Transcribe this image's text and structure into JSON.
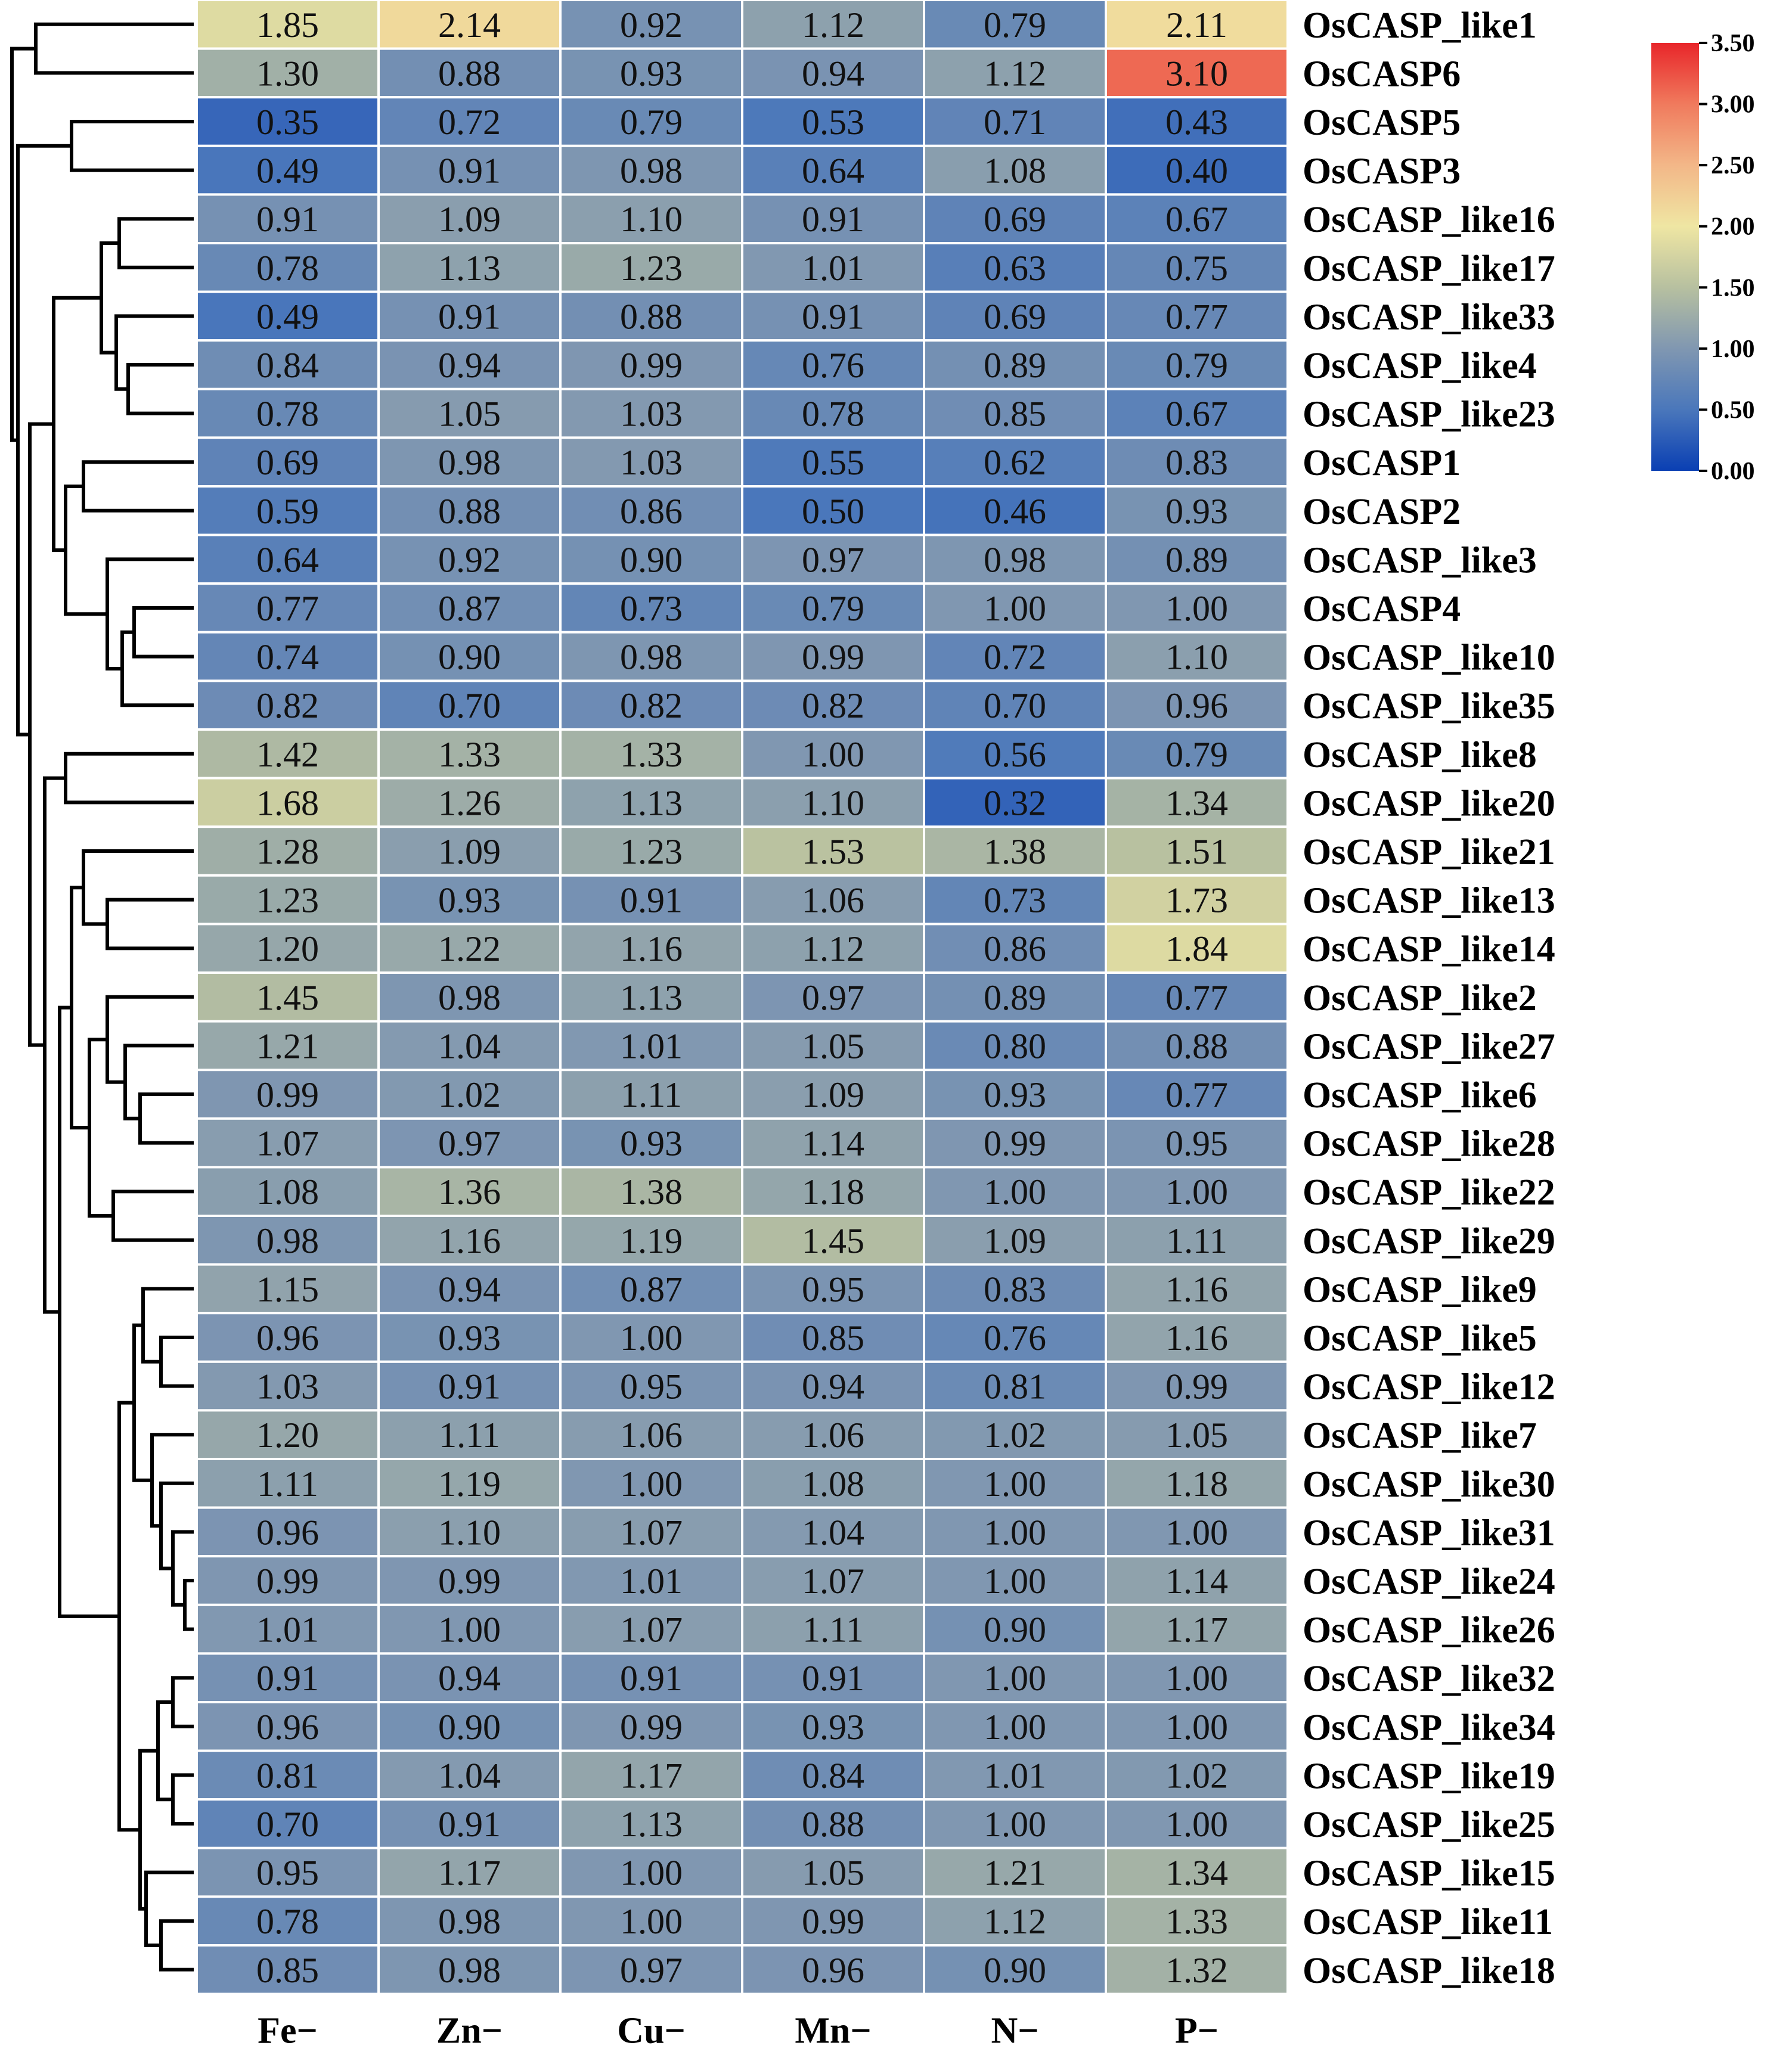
{
  "chart_data": {
    "type": "heatmap",
    "title": "",
    "columns": [
      "Fe−",
      "Zn−",
      "Cu−",
      "Mn−",
      "N−",
      "P−"
    ],
    "rows": [
      "OsCASP_like1",
      "OsCASP6",
      "OsCASP5",
      "OsCASP3",
      "OsCASP_like16",
      "OsCASP_like17",
      "OsCASP_like33",
      "OsCASP_like4",
      "OsCASP_like23",
      "OsCASP1",
      "OsCASP2",
      "OsCASP_like3",
      "OsCASP4",
      "OsCASP_like10",
      "OsCASP_like35",
      "OsCASP_like8",
      "OsCASP_like20",
      "OsCASP_like21",
      "OsCASP_like13",
      "OsCASP_like14",
      "OsCASP_like2",
      "OsCASP_like27",
      "OsCASP_like6",
      "OsCASP_like28",
      "OsCASP_like22",
      "OsCASP_like29",
      "OsCASP_like9",
      "OsCASP_like5",
      "OsCASP_like12",
      "OsCASP_like7",
      "OsCASP_like30",
      "OsCASP_like31",
      "OsCASP_like24",
      "OsCASP_like26",
      "OsCASP_like32",
      "OsCASP_like34",
      "OsCASP_like19",
      "OsCASP_like25",
      "OsCASP_like15",
      "OsCASP_like11",
      "OsCASP_like18"
    ],
    "values": [
      [
        "1.85",
        "2.14",
        "0.92",
        "1.12",
        "0.79",
        "2.11"
      ],
      [
        "1.30",
        "0.88",
        "0.93",
        "0.94",
        "1.12",
        "3.10"
      ],
      [
        "0.35",
        "0.72",
        "0.79",
        "0.53",
        "0.71",
        "0.43"
      ],
      [
        "0.49",
        "0.91",
        "0.98",
        "0.64",
        "1.08",
        "0.40"
      ],
      [
        "0.91",
        "1.09",
        "1.10",
        "0.91",
        "0.69",
        "0.67"
      ],
      [
        "0.78",
        "1.13",
        "1.23",
        "1.01",
        "0.63",
        "0.75"
      ],
      [
        "0.49",
        "0.91",
        "0.88",
        "0.91",
        "0.69",
        "0.77"
      ],
      [
        "0.84",
        "0.94",
        "0.99",
        "0.76",
        "0.89",
        "0.79"
      ],
      [
        "0.78",
        "1.05",
        "1.03",
        "0.78",
        "0.85",
        "0.67"
      ],
      [
        "0.69",
        "0.98",
        "1.03",
        "0.55",
        "0.62",
        "0.83"
      ],
      [
        "0.59",
        "0.88",
        "0.86",
        "0.50",
        "0.46",
        "0.93"
      ],
      [
        "0.64",
        "0.92",
        "0.90",
        "0.97",
        "0.98",
        "0.89"
      ],
      [
        "0.77",
        "0.87",
        "0.73",
        "0.79",
        "1.00",
        "1.00"
      ],
      [
        "0.74",
        "0.90",
        "0.98",
        "0.99",
        "0.72",
        "1.10"
      ],
      [
        "0.82",
        "0.70",
        "0.82",
        "0.82",
        "0.70",
        "0.96"
      ],
      [
        "1.42",
        "1.33",
        "1.33",
        "1.00",
        "0.56",
        "0.79"
      ],
      [
        "1.68",
        "1.26",
        "1.13",
        "1.10",
        "0.32",
        "1.34"
      ],
      [
        "1.28",
        "1.09",
        "1.23",
        "1.53",
        "1.38",
        "1.51"
      ],
      [
        "1.23",
        "0.93",
        "0.91",
        "1.06",
        "0.73",
        "1.73"
      ],
      [
        "1.20",
        "1.22",
        "1.16",
        "1.12",
        "0.86",
        "1.84"
      ],
      [
        "1.45",
        "0.98",
        "1.13",
        "0.97",
        "0.89",
        "0.77"
      ],
      [
        "1.21",
        "1.04",
        "1.01",
        "1.05",
        "0.80",
        "0.88"
      ],
      [
        "0.99",
        "1.02",
        "1.11",
        "1.09",
        "0.93",
        "0.77"
      ],
      [
        "1.07",
        "0.97",
        "0.93",
        "1.14",
        "0.99",
        "0.95"
      ],
      [
        "1.08",
        "1.36",
        "1.38",
        "1.18",
        "1.00",
        "1.00"
      ],
      [
        "0.98",
        "1.16",
        "1.19",
        "1.45",
        "1.09",
        "1.11"
      ],
      [
        "1.15",
        "0.94",
        "0.87",
        "0.95",
        "0.83",
        "1.16"
      ],
      [
        "0.96",
        "0.93",
        "1.00",
        "0.85",
        "0.76",
        "1.16"
      ],
      [
        "1.03",
        "0.91",
        "0.95",
        "0.94",
        "0.81",
        "0.99"
      ],
      [
        "1.20",
        "1.11",
        "1.06",
        "1.06",
        "1.02",
        "1.05"
      ],
      [
        "1.11",
        "1.19",
        "1.00",
        "1.08",
        "1.00",
        "1.18"
      ],
      [
        "0.96",
        "1.10",
        "1.07",
        "1.04",
        "1.00",
        "1.00"
      ],
      [
        "0.99",
        "0.99",
        "1.01",
        "1.07",
        "1.00",
        "1.14"
      ],
      [
        "1.01",
        "1.00",
        "1.07",
        "1.11",
        "0.90",
        "1.17"
      ],
      [
        "0.91",
        "0.94",
        "0.91",
        "0.91",
        "1.00",
        "1.00"
      ],
      [
        "0.96",
        "0.90",
        "0.99",
        "0.93",
        "1.00",
        "1.00"
      ],
      [
        "0.81",
        "1.04",
        "1.17",
        "0.84",
        "1.01",
        "1.02"
      ],
      [
        "0.70",
        "0.91",
        "1.13",
        "0.88",
        "1.00",
        "1.00"
      ],
      [
        "0.95",
        "1.17",
        "1.00",
        "1.05",
        "1.21",
        "1.34"
      ],
      [
        "0.78",
        "0.98",
        "1.00",
        "0.99",
        "1.12",
        "1.33"
      ],
      [
        "0.85",
        "0.98",
        "0.97",
        "0.96",
        "0.90",
        "1.32"
      ]
    ],
    "colorbar": {
      "min": 0,
      "max": 3.5,
      "ticks": [
        "0.00",
        "0.50",
        "1.00",
        "1.50",
        "2.00",
        "2.50",
        "3.00",
        "3.50"
      ],
      "colors": [
        "#0a3fb3",
        "#4a77bb",
        "#8097b1",
        "#b7c0a0",
        "#efe6a3",
        "#f3b788",
        "#f07a5d",
        "#e8262a"
      ]
    }
  }
}
